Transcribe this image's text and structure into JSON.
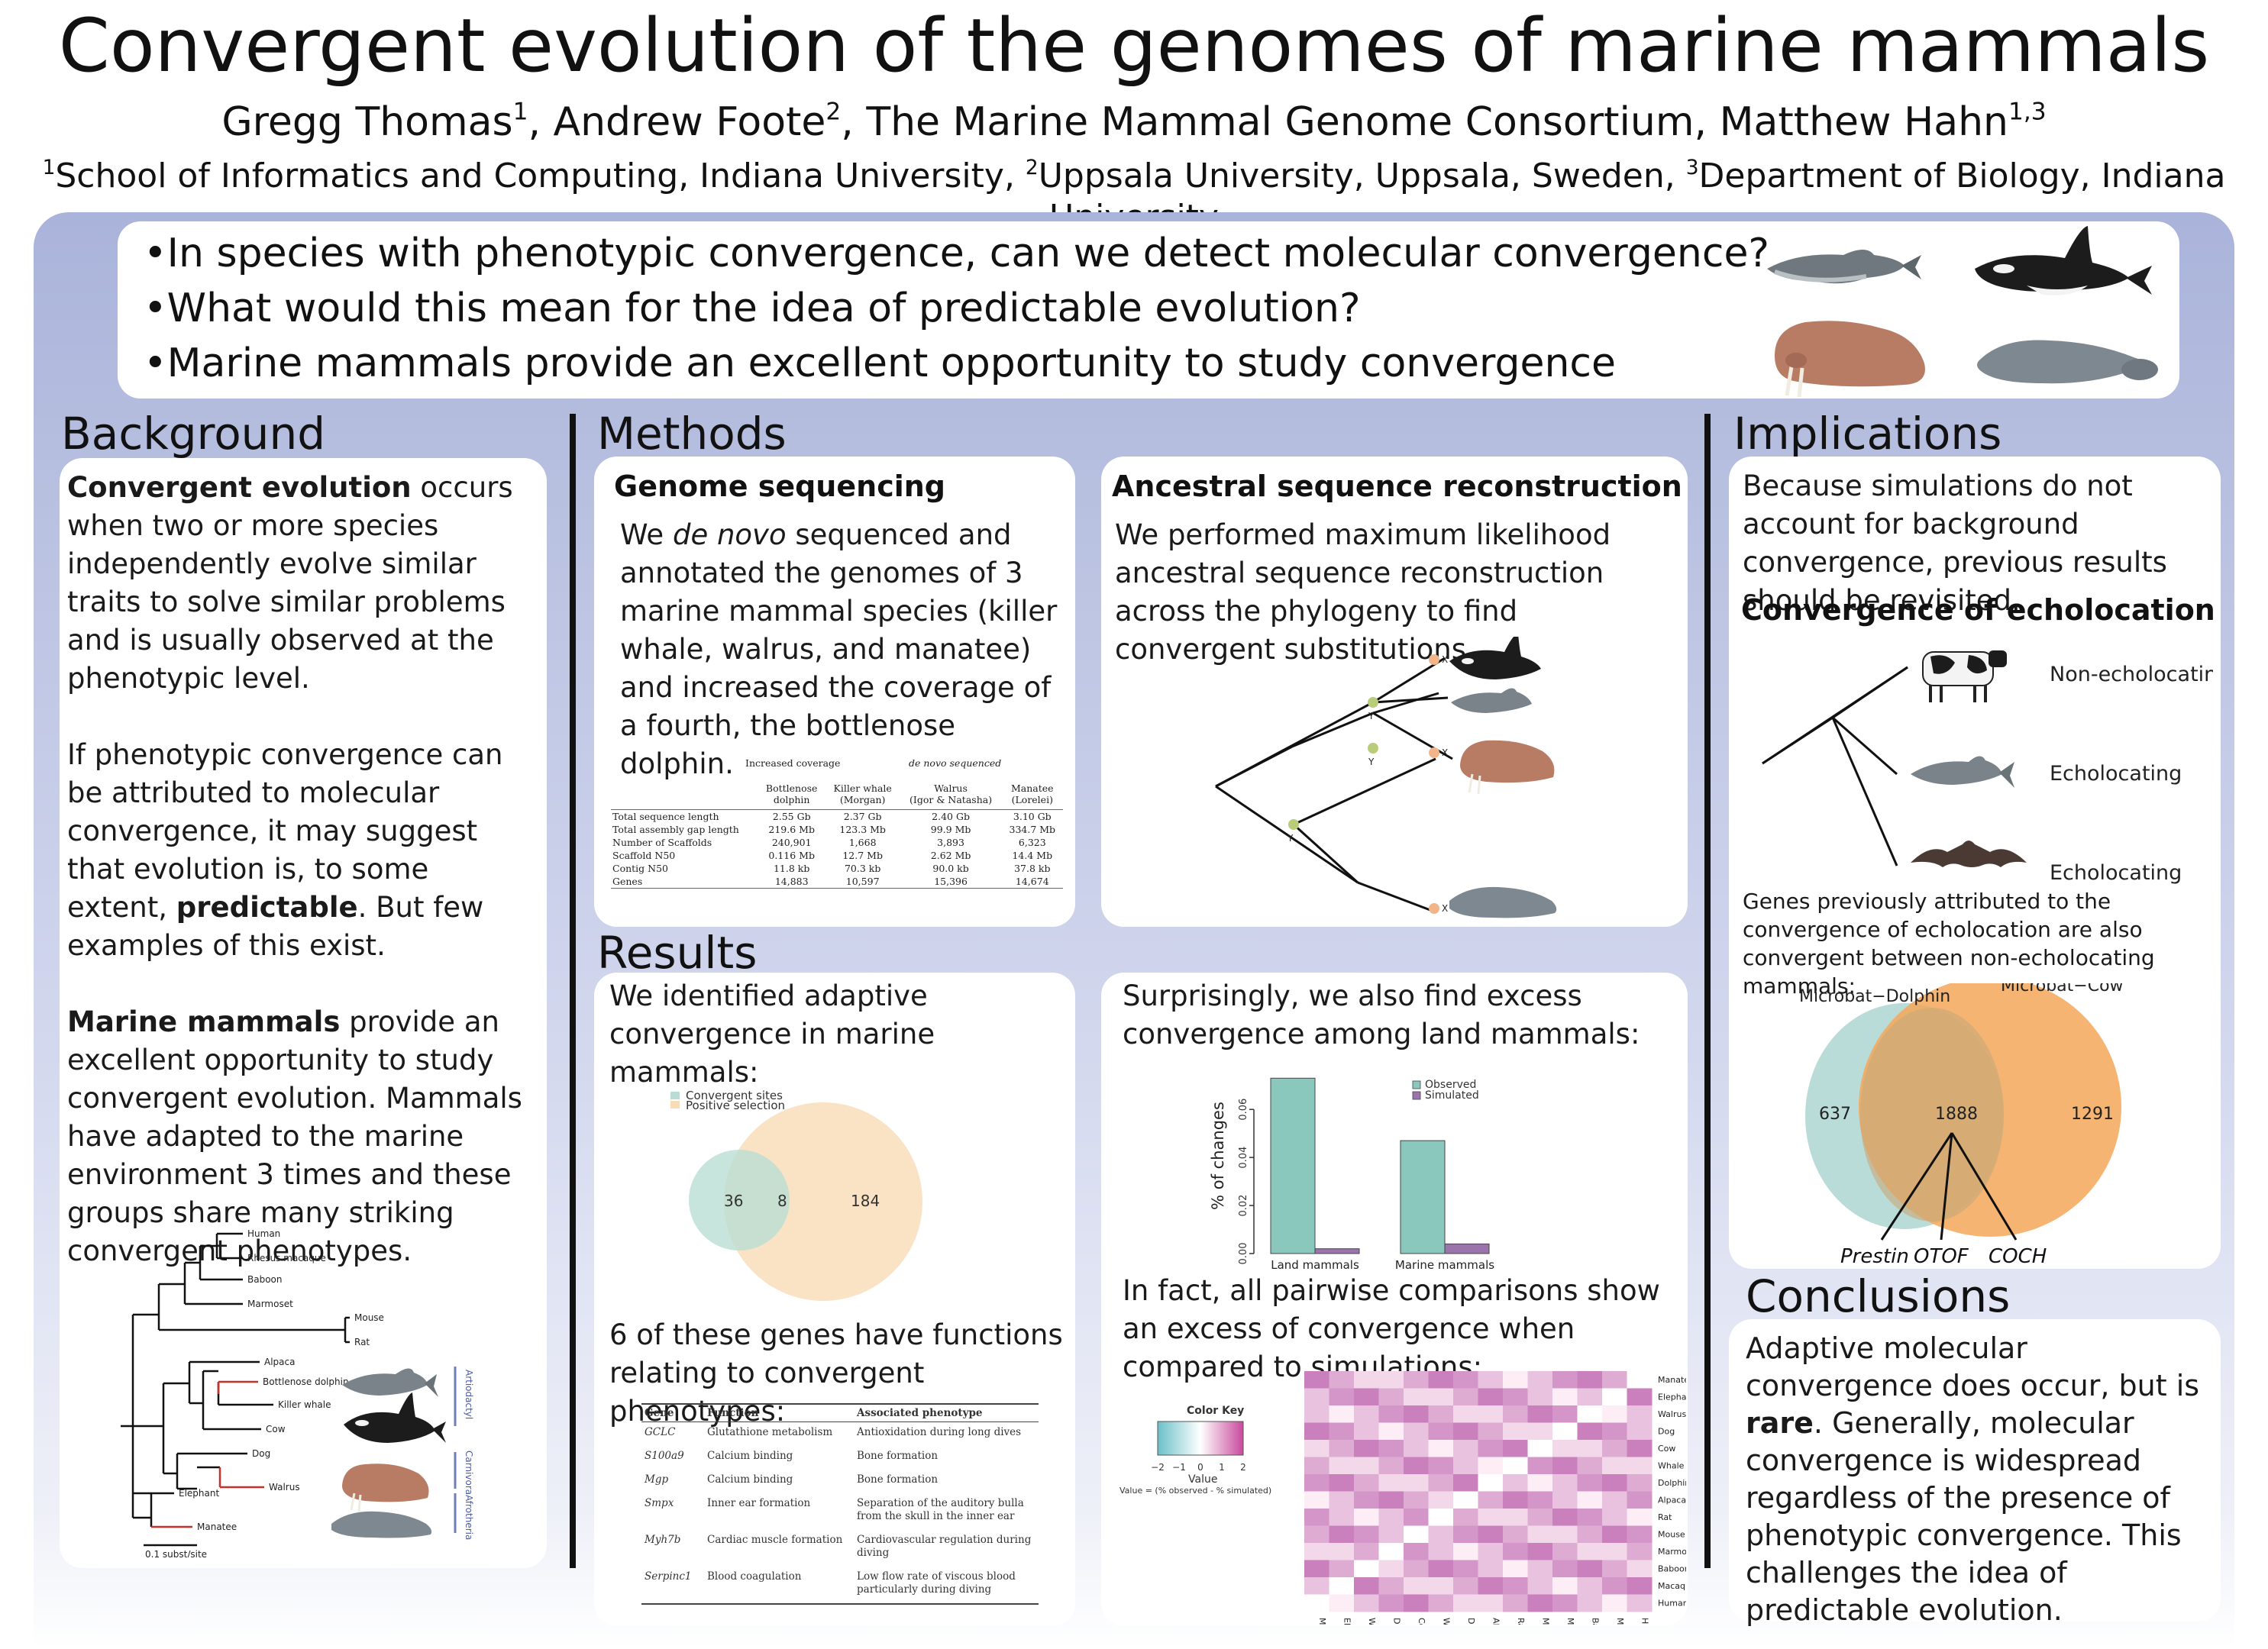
{
  "poster": {
    "title": "Convergent evolution of the genomes of marine mammals",
    "authors": [
      {
        "name": "Gregg Thomas",
        "sup": "1",
        "sep": ", "
      },
      {
        "name": "Andrew Foote",
        "sup": "2",
        "sep": ", "
      },
      {
        "name": "The Marine Mammal Genome Consortium",
        "sup": "",
        "sep": ", "
      },
      {
        "name": "Matthew Hahn",
        "sup": "1,3",
        "sep": ""
      }
    ],
    "affiliations": [
      {
        "sup": "1",
        "text": "School of Informatics and Computing, Indiana University, "
      },
      {
        "sup": "2",
        "text": "Uppsala University, Uppsala, Sweden, "
      },
      {
        "sup": "3",
        "text": "Department of Biology, Indiana University"
      }
    ]
  },
  "intro": {
    "questions": [
      "•In species with phenotypic convergence, can we detect molecular convergence?",
      "•What would this mean for the idea of predictable evolution?",
      "•Marine mammals provide an excellent opportunity to study convergence"
    ]
  },
  "background": {
    "header": "Background",
    "p1_bold": "Convergent evolution",
    "p1_rest": " occurs when two or more species independently evolve similar traits to solve similar problems and is usually observed at the phenotypic level.",
    "p2_start": "If phenotypic convergence can be attributed to molecular convergence, it may suggest that evolution is, to some extent, ",
    "p2_bold": "predictable",
    "p2_end": ". But few examples of this exist.",
    "p3_bold": "Marine mammals",
    "p3_rest": " provide an excellent opportunity to study convergent evolution. Mammals have adapted to the marine environment 3 times and these groups share many striking convergent phenotypes.",
    "tree": {
      "taxa": [
        "Human",
        "Rhesus macaque",
        "Baboon",
        "Marmoset",
        "Mouse",
        "Rat",
        "Alpaca",
        "Bottlenose dolphin",
        "Killer whale",
        "Cow",
        "Dog",
        "Walrus",
        "Elephant",
        "Manatee"
      ],
      "clades": [
        "Artiodactyl",
        "Carnivora",
        "Afrotheria"
      ],
      "scale": "0.1 subst/site"
    }
  },
  "methods": {
    "header": "Methods",
    "sequencing": {
      "title": "Genome sequencing",
      "text_pre": "We ",
      "text_italic": "de novo",
      "text_post": " sequenced and annotated the genomes of 3 marine mammal species (killer whale, walrus, and manatee)  and increased the coverage of a fourth, the bottlenose dolphin.",
      "table": {
        "group1": "Increased coverage",
        "group2": "de novo sequenced",
        "columns": [
          {
            "name": "Bottlenose",
            "sub": "dolphin"
          },
          {
            "name": "Killer whale",
            "sub": "(Morgan)"
          },
          {
            "name": "Walrus",
            "sub": "(Igor & Natasha)"
          },
          {
            "name": "Manatee",
            "sub": "(Lorelei)"
          }
        ],
        "rows": [
          {
            "label": "Total sequence length",
            "values": [
              "2.55 Gb",
              "2.37 Gb",
              "2.40 Gb",
              "3.10 Gb"
            ]
          },
          {
            "label": "Total assembly gap length",
            "values": [
              "219.6 Mb",
              "123.3 Mb",
              "99.9 Mb",
              "334.7 Mb"
            ]
          },
          {
            "label": "Number of Scaffolds",
            "values": [
              "240,901",
              "1,668",
              "3,893",
              "6,323"
            ]
          },
          {
            "label": "Scaffold N50",
            "values": [
              "0.116 Mb",
              "12.7 Mb",
              "2.62 Mb",
              "14.4 Mb"
            ]
          },
          {
            "label": "Contig N50",
            "values": [
              "11.8 kb",
              "70.3 kb",
              "90.0 kb",
              "37.8 kb"
            ]
          },
          {
            "label": "Genes",
            "values": [
              "14,883",
              "10,597",
              "15,396",
              "14,674"
            ]
          }
        ]
      }
    },
    "asr": {
      "title": "Ancestral sequence reconstruction",
      "text": "We performed maximum likelihood ancestral sequence reconstruction across the phylogeny to find convergent substitutions.",
      "node_y": "Y",
      "node_x": "X"
    }
  },
  "results": {
    "header": "Results",
    "adaptive_text": "We identified adaptive convergence in marine mammals:",
    "venn": {
      "legend": [
        "Convergent sites",
        "Positive selection"
      ],
      "left": "36",
      "overlap": "8",
      "right": "184",
      "colors": [
        "#b9ddd5",
        "#f7dcb5"
      ]
    },
    "genes_text": "6 of these genes have functions relating to convergent phenotypes:",
    "gene_table": {
      "headers": [
        "Gene",
        "Function",
        "Associated phenotype"
      ],
      "rows": [
        {
          "gene": "GCLC",
          "function": "Glutathione metabolism",
          "phenotype": "Antioxidation during long dives"
        },
        {
          "gene": "S100a9",
          "function": "Calcium binding",
          "phenotype": "Bone formation"
        },
        {
          "gene": "Mgp",
          "function": "Calcium binding",
          "phenotype": "Bone formation"
        },
        {
          "gene": "Smpx",
          "function": "Inner ear formation",
          "phenotype": "Separation of the auditory bulla from the skull in the inner ear"
        },
        {
          "gene": "Myh7b",
          "function": "Cardiac muscle formation",
          "phenotype": "Cardiovascular regulation during diving"
        },
        {
          "gene": "Serpinc1",
          "function": "Blood coagulation",
          "phenotype": "Low flow rate of viscous blood particularly during diving"
        }
      ]
    },
    "land_text": "Surprisingly, we also find excess convergence among land mammals:",
    "pairwise_text": "In fact, all pairwise comparisons show an excess of convergence when compared to simulations:",
    "heatmap": {
      "rows": [
        "Manatee",
        "Elephant",
        "Walrus",
        "Dog",
        "Cow",
        "Whale",
        "Dolphin",
        "Alpaca",
        "Rat",
        "Mouse",
        "Marmoset",
        "Baboon",
        "Macaque",
        "Human"
      ],
      "cols": [
        "Manatee",
        "Elephant",
        "Walrus",
        "Dog",
        "Cow",
        "Whale",
        "Dolphin",
        "Alpaca",
        "Rat",
        "Mouse",
        "Marmoset",
        "Baboon",
        "Macaque",
        "Human"
      ],
      "key_title": "Color Key",
      "key_ticks": [
        "−2",
        "−1",
        "0",
        "1",
        "2"
      ],
      "key_label": "Value",
      "key_note": "Value = (% observed - % simulated)"
    }
  },
  "chart_data": {
    "type": "bar",
    "categories": [
      "Land mammals",
      "Marine mammals"
    ],
    "series": [
      {
        "name": "Observed",
        "values": [
          0.073,
          0.047
        ],
        "color": "#8ac8bd"
      },
      {
        "name": "Simulated",
        "values": [
          0.002,
          0.004
        ],
        "color": "#9a74ab"
      }
    ],
    "ylabel": "% of changes",
    "ylim": [
      0,
      0.075
    ],
    "yticks": [
      "0.00",
      "0.02",
      "0.04",
      "0.06"
    ],
    "legend": "top-right"
  },
  "implications": {
    "header": "Implications",
    "text": "Because simulations do not account for background convergence, previous results should be revisited.",
    "echo_title": "Convergence of echolocation",
    "labels": [
      "Non-echolocating",
      "Echolocating",
      "Echolocating"
    ],
    "genes_text": "Genes previously attributed to the convergence of echolocation are also convergent between non-echolocating mammals:",
    "venn": {
      "left_title": "Microbat−Dolphin",
      "right_title": "Microbat−Cow",
      "left": "637",
      "overlap": "1888",
      "right": "1291",
      "genes": [
        "Prestin",
        "OTOF",
        "COCH"
      ]
    }
  },
  "conclusions": {
    "header": "Conclusions",
    "text_pre": "Adaptive molecular convergence does occur, but is ",
    "text_bold": "rare",
    "text_post": ". Generally, molecular convergence is widespread regardless of the presence of phenotypic convergence. This challenges the idea of predictable evolution."
  }
}
